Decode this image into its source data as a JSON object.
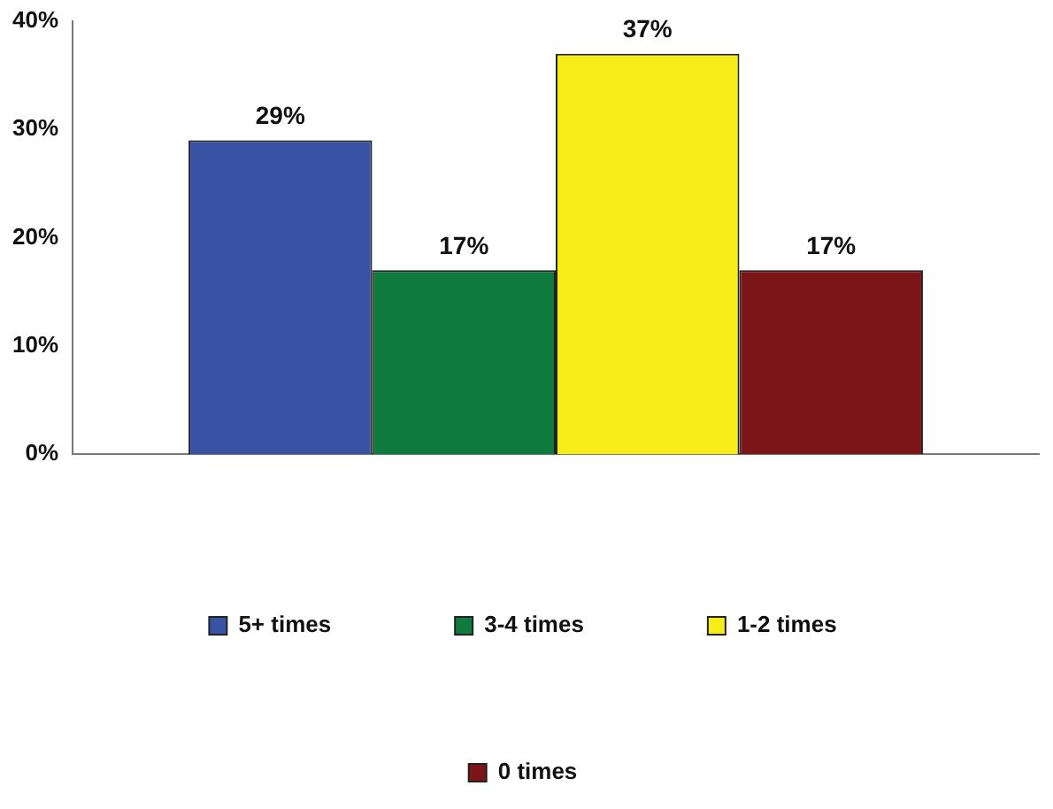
{
  "chart_data": {
    "type": "bar",
    "categories": [
      null
    ],
    "series": [
      {
        "name": "5+ times",
        "color": "#3953a4",
        "values": [
          29
        ],
        "value_labels": [
          "29%"
        ]
      },
      {
        "name": "3-4 times",
        "color": "#0f7a3e",
        "values": [
          17
        ],
        "value_labels": [
          "17%"
        ]
      },
      {
        "name": "1-2 times",
        "color": "#f5ec18",
        "values": [
          37
        ],
        "value_labels": [
          "37%"
        ]
      },
      {
        "name": "0 times",
        "color": "#7b1517",
        "values": [
          17
        ],
        "value_labels": [
          "17%"
        ]
      }
    ],
    "ylim": [
      0,
      40
    ],
    "yticks": [
      {
        "value": 0,
        "label": "0%"
      },
      {
        "value": 10,
        "label": "10%"
      },
      {
        "value": 20,
        "label": "20%"
      },
      {
        "value": 30,
        "label": "30%"
      },
      {
        "value": 40,
        "label": "40%"
      }
    ],
    "grid": false,
    "legend": "bottom"
  }
}
